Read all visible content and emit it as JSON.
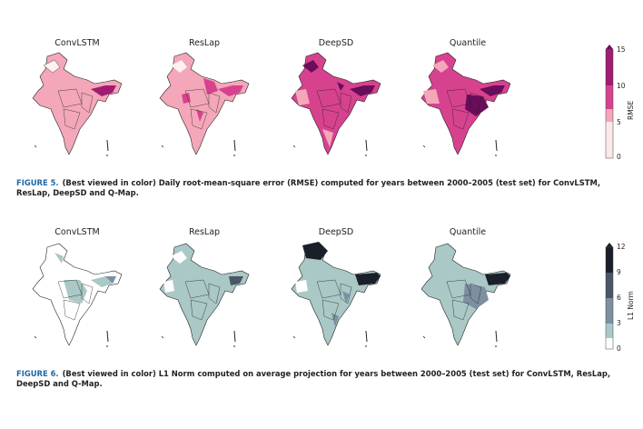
{
  "figure5": {
    "panel_titles": [
      "ConvLSTM",
      "ResLap",
      "DeepSD",
      "Quantile"
    ],
    "colorbar": {
      "label": "RMSE",
      "ticks": [
        "15",
        "10",
        "5",
        "0"
      ],
      "colors": [
        "#fdf1f1",
        "#f4a7b9",
        "#d7428f",
        "#a21c72",
        "#6a0d5a"
      ]
    },
    "caption_label": "FIGURE 5.",
    "caption_text": "(Best viewed in color) Daily root-mean-square error (RMSE) computed for years between 2000–2005 (test set) for ConvLSTM, ResLap, DeepSD and Q-Map."
  },
  "figure6": {
    "panel_titles": [
      "ConvLSTM",
      "ResLap",
      "DeepSD",
      "Quantile"
    ],
    "colorbar": {
      "label": "L1 Norm",
      "ticks": [
        "12",
        "9",
        "6",
        "3",
        "0"
      ],
      "colors": [
        "#ffffff",
        "#a9c8c6",
        "#7d8fa1",
        "#4a5567",
        "#1b1f2a"
      ]
    },
    "caption_label": "FIGURE 6.",
    "caption_text": "(Best viewed in color) L1 Norm computed on average projection for years between 2000–2005 (test set) for ConvLSTM, ResLap, DeepSD and Q-Map."
  }
}
